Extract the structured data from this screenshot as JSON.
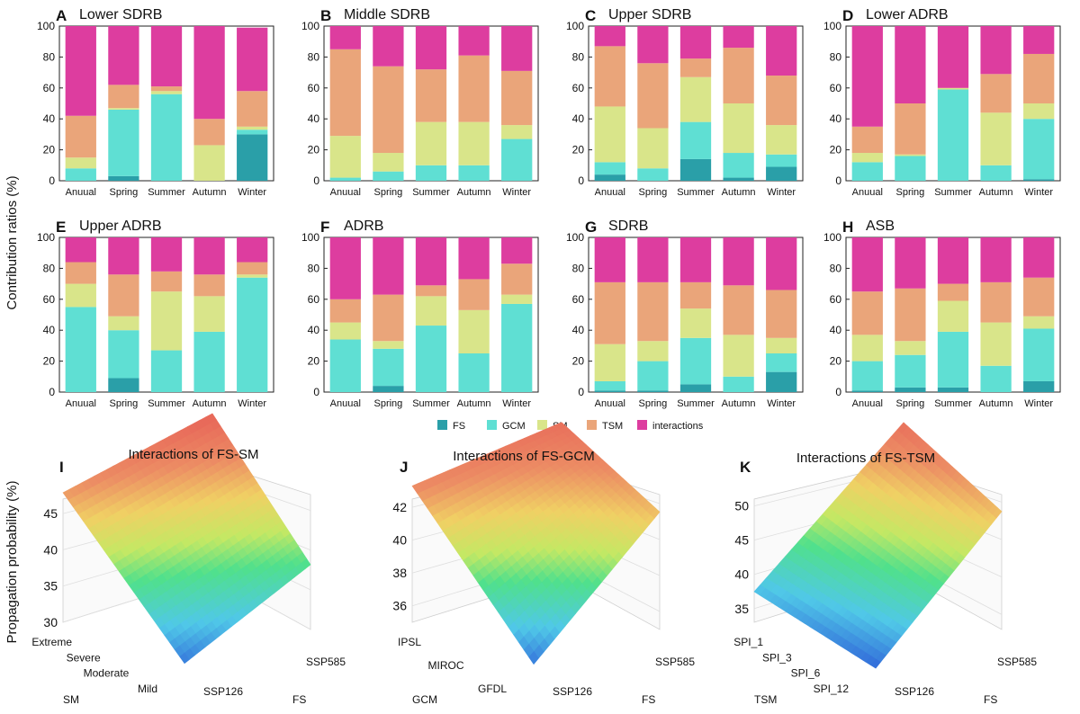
{
  "figure": {
    "bar_ylabel": "Contribution ratios (%)",
    "surface_ylabel": "Propagation probability (%)",
    "legend": [
      {
        "label": "FS",
        "color": "#2a9fa8"
      },
      {
        "label": "GCM",
        "color": "#5fdfd3"
      },
      {
        "label": "SM",
        "color": "#d9e58a"
      },
      {
        "label": "TSM",
        "color": "#eaa57a"
      },
      {
        "label": "interactions",
        "color": "#dd3d9f"
      }
    ]
  },
  "chart_data": [
    {
      "type": "bar",
      "stacked": true,
      "panel": "A",
      "title": "Lower SDRB",
      "categories": [
        "Anuual",
        "Spring",
        "Summer",
        "Autumn",
        "Winter"
      ],
      "ylim": [
        0,
        100
      ],
      "yticks": [
        0,
        20,
        40,
        60,
        80,
        100
      ],
      "series": [
        {
          "name": "FS",
          "values": [
            0,
            3,
            0,
            0,
            30
          ]
        },
        {
          "name": "GCM",
          "values": [
            8,
            43,
            56,
            0,
            3
          ]
        },
        {
          "name": "SM",
          "values": [
            7,
            1,
            2,
            23,
            2
          ]
        },
        {
          "name": "TSM",
          "values": [
            27,
            15,
            3,
            17,
            23
          ]
        },
        {
          "name": "interactions",
          "values": [
            58,
            38,
            39,
            60,
            41
          ]
        }
      ]
    },
    {
      "type": "bar",
      "stacked": true,
      "panel": "B",
      "title": "Middle SDRB",
      "categories": [
        "Anuual",
        "Spring",
        "Summer",
        "Autumn",
        "Winter"
      ],
      "ylim": [
        0,
        100
      ],
      "yticks": [
        0,
        20,
        40,
        60,
        80,
        100
      ],
      "series": [
        {
          "name": "FS",
          "values": [
            0,
            0,
            0,
            0,
            0
          ]
        },
        {
          "name": "GCM",
          "values": [
            2,
            6,
            10,
            10,
            27
          ]
        },
        {
          "name": "SM",
          "values": [
            27,
            12,
            28,
            28,
            9
          ]
        },
        {
          "name": "TSM",
          "values": [
            56,
            56,
            34,
            43,
            35
          ]
        },
        {
          "name": "interactions",
          "values": [
            15,
            26,
            28,
            19,
            29
          ]
        }
      ]
    },
    {
      "type": "bar",
      "stacked": true,
      "panel": "C",
      "title": "Upper SDRB",
      "categories": [
        "Anuual",
        "Spring",
        "Summer",
        "Autumn",
        "Winter"
      ],
      "ylim": [
        0,
        100
      ],
      "yticks": [
        0,
        20,
        40,
        60,
        80,
        100
      ],
      "series": [
        {
          "name": "FS",
          "values": [
            4,
            0,
            14,
            2,
            9
          ]
        },
        {
          "name": "GCM",
          "values": [
            8,
            8,
            24,
            16,
            8
          ]
        },
        {
          "name": "SM",
          "values": [
            36,
            26,
            29,
            32,
            19
          ]
        },
        {
          "name": "TSM",
          "values": [
            39,
            42,
            12,
            36,
            32
          ]
        },
        {
          "name": "interactions",
          "values": [
            13,
            24,
            21,
            14,
            32
          ]
        }
      ]
    },
    {
      "type": "bar",
      "stacked": true,
      "panel": "D",
      "title": "Lower ADRB",
      "categories": [
        "Anuual",
        "Spring",
        "Summer",
        "Autumn",
        "Winter"
      ],
      "ylim": [
        0,
        100
      ],
      "yticks": [
        0,
        20,
        40,
        60,
        80,
        100
      ],
      "series": [
        {
          "name": "FS",
          "values": [
            0,
            0,
            0,
            0,
            1
          ]
        },
        {
          "name": "GCM",
          "values": [
            12,
            16,
            59,
            10,
            39
          ]
        },
        {
          "name": "SM",
          "values": [
            6,
            1,
            1,
            34,
            10
          ]
        },
        {
          "name": "TSM",
          "values": [
            17,
            33,
            0,
            25,
            32
          ]
        },
        {
          "name": "interactions",
          "values": [
            65,
            50,
            40,
            31,
            18
          ]
        }
      ]
    },
    {
      "type": "bar",
      "stacked": true,
      "panel": "E",
      "title": "Upper ADRB",
      "categories": [
        "Anuual",
        "Spring",
        "Summer",
        "Autumn",
        "Winter"
      ],
      "ylim": [
        0,
        100
      ],
      "yticks": [
        0,
        20,
        40,
        60,
        80,
        100
      ],
      "series": [
        {
          "name": "FS",
          "values": [
            0,
            9,
            0,
            0,
            0
          ]
        },
        {
          "name": "GCM",
          "values": [
            55,
            31,
            27,
            39,
            74
          ]
        },
        {
          "name": "SM",
          "values": [
            15,
            9,
            38,
            23,
            2
          ]
        },
        {
          "name": "TSM",
          "values": [
            14,
            27,
            13,
            14,
            8
          ]
        },
        {
          "name": "interactions",
          "values": [
            16,
            24,
            22,
            24,
            16
          ]
        }
      ]
    },
    {
      "type": "bar",
      "stacked": true,
      "panel": "F",
      "title": "ADRB",
      "categories": [
        "Anuual",
        "Spring",
        "Summer",
        "Autumn",
        "Winter"
      ],
      "ylim": [
        0,
        100
      ],
      "yticks": [
        0,
        20,
        40,
        60,
        80,
        100
      ],
      "series": [
        {
          "name": "FS",
          "values": [
            0,
            4,
            0,
            0,
            0
          ]
        },
        {
          "name": "GCM",
          "values": [
            34,
            24,
            43,
            25,
            57
          ]
        },
        {
          "name": "SM",
          "values": [
            11,
            5,
            19,
            28,
            6
          ]
        },
        {
          "name": "TSM",
          "values": [
            15,
            30,
            7,
            20,
            20
          ]
        },
        {
          "name": "interactions",
          "values": [
            40,
            37,
            31,
            27,
            17
          ]
        }
      ]
    },
    {
      "type": "bar",
      "stacked": true,
      "panel": "G",
      "title": "SDRB",
      "categories": [
        "Anuual",
        "Spring",
        "Summer",
        "Autumn",
        "Winter"
      ],
      "ylim": [
        0,
        100
      ],
      "yticks": [
        0,
        20,
        40,
        60,
        80,
        100
      ],
      "series": [
        {
          "name": "FS",
          "values": [
            1,
            1,
            5,
            0,
            13
          ]
        },
        {
          "name": "GCM",
          "values": [
            6,
            19,
            30,
            10,
            12
          ]
        },
        {
          "name": "SM",
          "values": [
            24,
            13,
            19,
            27,
            10
          ]
        },
        {
          "name": "TSM",
          "values": [
            40,
            38,
            17,
            32,
            31
          ]
        },
        {
          "name": "interactions",
          "values": [
            29,
            29,
            29,
            31,
            34
          ]
        }
      ]
    },
    {
      "type": "bar",
      "stacked": true,
      "panel": "H",
      "title": "ASB",
      "categories": [
        "Anuual",
        "Spring",
        "Summer",
        "Autumn",
        "Winter"
      ],
      "ylim": [
        0,
        100
      ],
      "yticks": [
        0,
        20,
        40,
        60,
        80,
        100
      ],
      "series": [
        {
          "name": "FS",
          "values": [
            1,
            3,
            3,
            0,
            7
          ]
        },
        {
          "name": "GCM",
          "values": [
            19,
            21,
            36,
            17,
            34
          ]
        },
        {
          "name": "SM",
          "values": [
            17,
            9,
            20,
            28,
            8
          ]
        },
        {
          "name": "TSM",
          "values": [
            28,
            34,
            11,
            26,
            25
          ]
        },
        {
          "name": "interactions",
          "values": [
            35,
            33,
            30,
            29,
            26
          ]
        }
      ]
    },
    {
      "type": "surface",
      "panel": "I",
      "title": "Interactions of FS-SM",
      "zticks": [
        30,
        35,
        40,
        45
      ],
      "zlim": [
        30,
        47
      ],
      "x": {
        "name": "FS",
        "ticks": [
          "SSP126",
          "SSP585"
        ]
      },
      "y": {
        "name": "SM",
        "ticks": [
          "Mild",
          "Moderate",
          "Severe",
          "Extreme"
        ]
      },
      "z_corners": {
        "front": 31,
        "right": 37,
        "back": 47.5,
        "left": 44
      }
    },
    {
      "type": "surface",
      "panel": "J",
      "title": "Interactions of FS-GCM",
      "zticks": [
        36,
        38,
        40,
        42
      ],
      "zlim": [
        35,
        42.5
      ],
      "x": {
        "name": "FS",
        "ticks": [
          "SSP126",
          "SSP585"
        ]
      },
      "y": {
        "name": "GCM",
        "ticks": [
          "GFDL",
          "MIROC",
          "IPSL"
        ]
      },
      "z_corners": {
        "front": 35.4,
        "right": 40.6,
        "back": 42.3,
        "left": 41.5
      }
    },
    {
      "type": "surface",
      "panel": "K",
      "title": "Interactions of FS-TSM",
      "zticks": [
        35,
        40,
        45,
        50
      ],
      "zlim": [
        33,
        51
      ],
      "x": {
        "name": "FS",
        "ticks": [
          "SSP126",
          "SSP585"
        ]
      },
      "y": {
        "name": "TSM",
        "ticks": [
          "SPI_12",
          "SPI_6",
          "SPI_3",
          "SPI_1"
        ]
      },
      "z_corners": {
        "front": 33.5,
        "right": 46.5,
        "back": 50.5,
        "left": 36.5
      }
    }
  ]
}
